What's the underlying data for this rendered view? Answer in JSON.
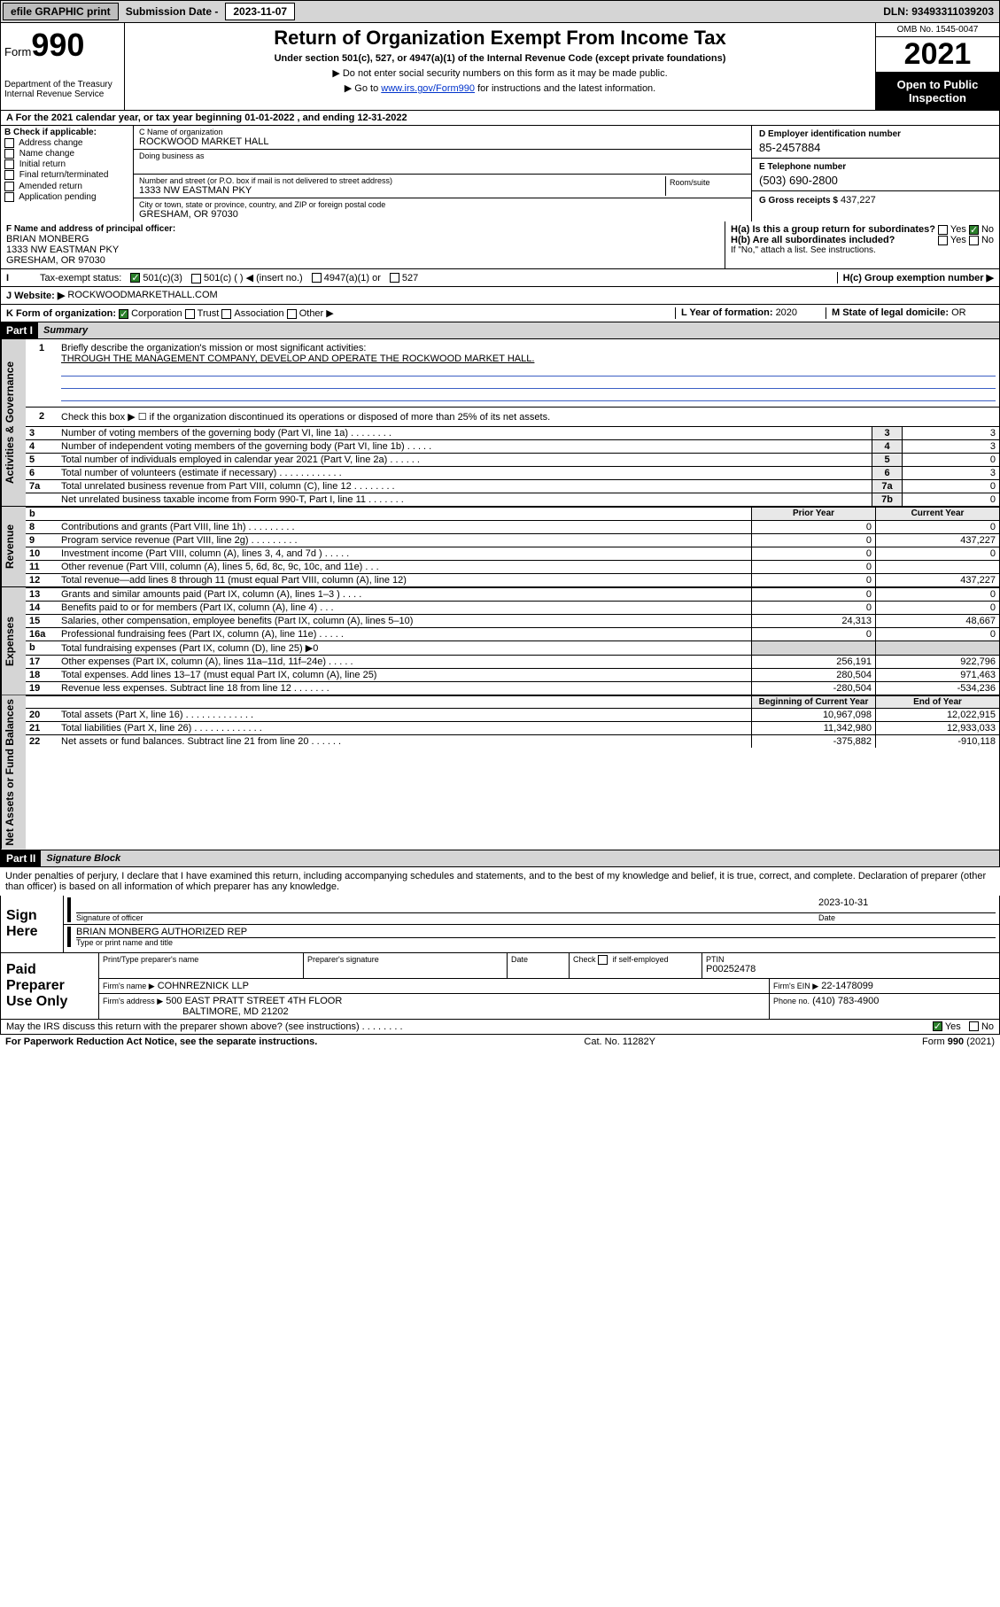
{
  "topbar": {
    "efile": "efile GRAPHIC print",
    "sub_lbl": "Submission Date -",
    "sub_val": "2023-11-07",
    "dln": "DLN: 93493311039203"
  },
  "hdr": {
    "form_prefix": "Form",
    "form_no": "990",
    "dept": "Department of the Treasury\nInternal Revenue Service",
    "title": "Return of Organization Exempt From Income Tax",
    "sub": "Under section 501(c), 527, or 4947(a)(1) of the Internal Revenue Code (except private foundations)",
    "note1": "▶ Do not enter social security numbers on this form as it may be made public.",
    "note2_pre": "▶ Go to ",
    "note2_link": "www.irs.gov/Form990",
    "note2_post": " for instructions and the latest information.",
    "omb": "OMB No. 1545-0047",
    "year": "2021",
    "open": "Open to Public Inspection"
  },
  "period": "A For the 2021 calendar year, or tax year beginning 01-01-2022   , and ending 12-31-2022",
  "B": {
    "hdr": "B Check if applicable:",
    "items": [
      "Address change",
      "Name change",
      "Initial return",
      "Final return/terminated",
      "Amended return",
      "Application pending"
    ]
  },
  "C": {
    "name_lab": "C Name of organization",
    "name": "ROCKWOOD MARKET HALL",
    "dba_lab": "Doing business as",
    "dba": "",
    "street_lab": "Number and street (or P.O. box if mail is not delivered to street address)",
    "street": "1333 NW EASTMAN PKY",
    "suite_lab": "Room/suite",
    "city_lab": "City or town, state or province, country, and ZIP or foreign postal code",
    "city": "GRESHAM, OR  97030"
  },
  "D": {
    "lab": "D Employer identification number",
    "val": "85-2457884"
  },
  "E": {
    "lab": "E Telephone number",
    "val": "(503) 690-2800"
  },
  "G": {
    "lab": "G Gross receipts $",
    "val": "437,227"
  },
  "F": {
    "lab": "F  Name and address of principal officer:",
    "name": "BRIAN MONBERG",
    "addr1": "1333 NW EASTMAN PKY",
    "addr2": "GRESHAM, OR  97030"
  },
  "H": {
    "a": "H(a)  Is this a group return for subordinates?",
    "b": "H(b)  Are all subordinates included?",
    "b_note": "If \"No,\" attach a list. See instructions.",
    "c": "H(c)  Group exemption number ▶",
    "yes": "Yes",
    "no": "No"
  },
  "I": {
    "lab": "Tax-exempt status:",
    "o1": "501(c)(3)",
    "o2": "501(c) (  ) ◀ (insert no.)",
    "o3": "4947(a)(1) or",
    "o4": "527"
  },
  "J": {
    "lab": "J   Website: ▶",
    "val": "ROCKWOODMARKETHALL.COM"
  },
  "K": {
    "lab": "K Form of organization:",
    "o1": "Corporation",
    "o2": "Trust",
    "o3": "Association",
    "o4": "Other ▶"
  },
  "L": {
    "lab": "L Year of formation: ",
    "val": "2020"
  },
  "M": {
    "lab": "M State of legal domicile: ",
    "val": "OR"
  },
  "partI": {
    "hdr": "Part I",
    "title": "Summary"
  },
  "summary": {
    "l1_lab": "Briefly describe the organization's mission or most significant activities:",
    "l1_val": "THROUGH THE MANAGEMENT COMPANY, DEVELOP AND OPERATE THE ROCKWOOD MARKET HALL.",
    "l2": "Check this box ▶ ☐  if the organization discontinued its operations or disposed of more than 25% of its net assets.",
    "rows1": [
      {
        "n": "3",
        "t": "Number of voting members of the governing body (Part VI, line 1a)   .   .   .   .   .   .   .   .",
        "b": "3",
        "v": "3"
      },
      {
        "n": "4",
        "t": "Number of independent voting members of the governing body (Part VI, line 1b)   .   .   .   .   .",
        "b": "4",
        "v": "3"
      },
      {
        "n": "5",
        "t": "Total number of individuals employed in calendar year 2021 (Part V, line 2a)   .   .   .   .   .   .",
        "b": "5",
        "v": "0"
      },
      {
        "n": "6",
        "t": "Total number of volunteers (estimate if necessary)   .   .   .   .   .   .   .   .   .   .   .   .",
        "b": "6",
        "v": "3"
      },
      {
        "n": "7a",
        "t": "Total unrelated business revenue from Part VIII, column (C), line 12   .   .   .   .   .   .   .   .",
        "b": "7a",
        "v": "0"
      },
      {
        "n": "",
        "t": "Net unrelated business taxable income from Form 990-T, Part I, line 11   .   .   .   .   .   .   .",
        "b": "7b",
        "v": "0"
      }
    ],
    "col_prior": "Prior Year",
    "col_curr": "Current Year",
    "rev": [
      {
        "n": "8",
        "t": "Contributions and grants (Part VIII, line 1h)   .   .   .   .   .   .   .   .   .",
        "p": "0",
        "c": "0"
      },
      {
        "n": "9",
        "t": "Program service revenue (Part VIII, line 2g)   .   .   .   .   .   .   .   .   .",
        "p": "0",
        "c": "437,227"
      },
      {
        "n": "10",
        "t": "Investment income (Part VIII, column (A), lines 3, 4, and 7d )   .   .   .   .   .",
        "p": "0",
        "c": "0"
      },
      {
        "n": "11",
        "t": "Other revenue (Part VIII, column (A), lines 5, 6d, 8c, 9c, 10c, and 11e)   .   .   .",
        "p": "0",
        "c": ""
      },
      {
        "n": "12",
        "t": "Total revenue—add lines 8 through 11 (must equal Part VIII, column (A), line 12)",
        "p": "0",
        "c": "437,227"
      }
    ],
    "exp": [
      {
        "n": "13",
        "t": "Grants and similar amounts paid (Part IX, column (A), lines 1–3 )   .   .   .   .",
        "p": "0",
        "c": "0"
      },
      {
        "n": "14",
        "t": "Benefits paid to or for members (Part IX, column (A), line 4)   .   .   .",
        "p": "0",
        "c": "0"
      },
      {
        "n": "15",
        "t": "Salaries, other compensation, employee benefits (Part IX, column (A), lines 5–10)",
        "p": "24,313",
        "c": "48,667"
      },
      {
        "n": "16a",
        "t": "Professional fundraising fees (Part IX, column (A), line 11e)   .   .   .   .   .",
        "p": "0",
        "c": "0"
      },
      {
        "n": "b",
        "t": "Total fundraising expenses (Part IX, column (D), line 25) ▶0",
        "p": "",
        "c": "",
        "grey": true
      },
      {
        "n": "17",
        "t": "Other expenses (Part IX, column (A), lines 11a–11d, 11f–24e)   .   .   .   .   .",
        "p": "256,191",
        "c": "922,796"
      },
      {
        "n": "18",
        "t": "Total expenses. Add lines 13–17 (must equal Part IX, column (A), line 25)",
        "p": "280,504",
        "c": "971,463"
      },
      {
        "n": "19",
        "t": "Revenue less expenses. Subtract line 18 from line 12   .   .   .   .   .   .   .",
        "p": "-280,504",
        "c": "-534,236"
      }
    ],
    "col_beg": "Beginning of Current Year",
    "col_end": "End of Year",
    "net": [
      {
        "n": "20",
        "t": "Total assets (Part X, line 16)   .   .   .   .   .   .   .   .   .   .   .   .   .",
        "p": "10,967,098",
        "c": "12,022,915"
      },
      {
        "n": "21",
        "t": "Total liabilities (Part X, line 26)   .   .   .   .   .   .   .   .   .   .   .   .   .",
        "p": "11,342,980",
        "c": "12,933,033"
      },
      {
        "n": "22",
        "t": "Net assets or fund balances. Subtract line 21 from line 20   .   .   .   .   .   .",
        "p": "-375,882",
        "c": "-910,118"
      }
    ]
  },
  "sect_labels": {
    "ag": "Activities & Governance",
    "rev": "Revenue",
    "exp": "Expenses",
    "net": "Net Assets or Fund Balances"
  },
  "partII": {
    "hdr": "Part II",
    "title": "Signature Block",
    "decl": "Under penalties of perjury, I declare that I have examined this return, including accompanying schedules and statements, and to the best of my knowledge and belief, it is true, correct, and complete. Declaration of preparer (other than officer) is based on all information of which preparer has any knowledge."
  },
  "sign": {
    "here": "Sign Here",
    "sig_lab": "Signature of officer",
    "date_lab": "Date",
    "date": "2023-10-31",
    "name": "BRIAN MONBERG  AUTHORIZED REP",
    "name_lab": "Type or print name and title"
  },
  "paid": {
    "lab": "Paid Preparer Use Only",
    "h1": "Print/Type preparer's name",
    "h2": "Preparer's signature",
    "h3": "Date",
    "h4_a": "Check",
    "h4_b": "if self-employed",
    "h5": "PTIN",
    "ptin": "P00252478",
    "firm_lab": "Firm's name    ▶",
    "firm": "COHNREZNICK LLP",
    "ein_lab": "Firm's EIN ▶",
    "ein": "22-1478099",
    "addr_lab": "Firm's address ▶",
    "addr1": "500 EAST PRATT STREET 4TH FLOOR",
    "addr2": "BALTIMORE, MD  21202",
    "ph_lab": "Phone no.",
    "ph": "(410) 783-4900"
  },
  "discuss": "May the IRS discuss this return with the preparer shown above? (see instructions)   .   .   .   .   .   .   .   .",
  "discuss_yes": "Yes",
  "discuss_no": "No",
  "foot": {
    "l": "For Paperwork Reduction Act Notice, see the separate instructions.",
    "c": "Cat. No. 11282Y",
    "r": "Form 990 (2021)"
  }
}
